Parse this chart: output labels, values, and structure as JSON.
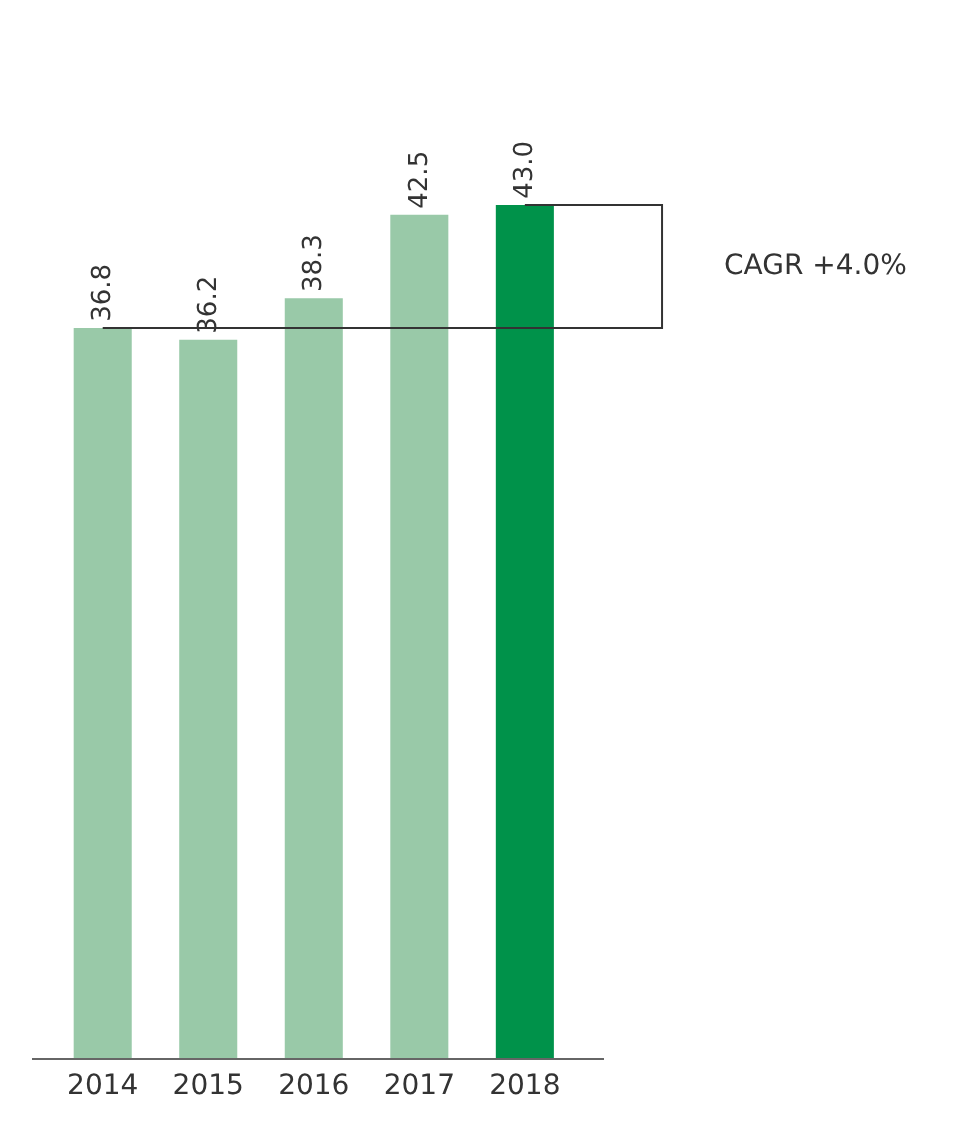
{
  "chart_data": {
    "type": "bar",
    "categories": [
      "2014",
      "2015",
      "2016",
      "2017",
      "2018"
    ],
    "values": [
      36.8,
      36.2,
      38.3,
      42.5,
      43.0
    ],
    "colors": [
      "#99c9a8",
      "#99c9a8",
      "#99c9a8",
      "#99c9a8",
      "#00924a"
    ],
    "value_labels": [
      "36.8",
      "36.2",
      "38.3",
      "42.5",
      "43.0"
    ],
    "tick_labels": "x",
    "annotations": [
      "CAGR +4.0%"
    ]
  }
}
